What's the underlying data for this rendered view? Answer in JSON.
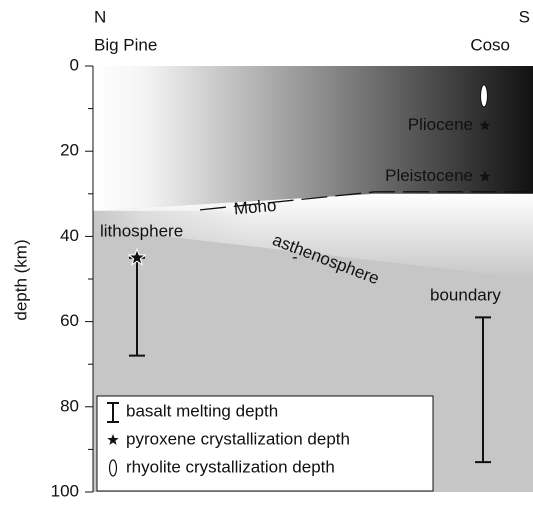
{
  "chart_data": {
    "type": "cross-section",
    "directions": [
      "N",
      "S"
    ],
    "locations": [
      "Big Pine",
      "Coso"
    ],
    "y_label": "depth (km)",
    "ylim": [
      0,
      100
    ],
    "yticks": [
      0,
      20,
      40,
      60,
      80,
      100
    ],
    "y_minor_ticks": [
      10,
      30,
      50,
      70,
      90
    ],
    "moho": {
      "label": "Moho",
      "depths": [
        34,
        30
      ]
    },
    "lab_label": [
      "lithosphere",
      "-",
      "asthenosphere",
      "boundary"
    ],
    "basalt_melting_depth": {
      "name": "basalt melting depth",
      "ranges": [
        [
          45,
          68
        ],
        [
          59,
          93
        ]
      ]
    },
    "pyroxene_crystallization_depth": {
      "name": "pyroxene crystallization depth",
      "points": [
        {
          "depth": 45
        },
        {
          "depth": 14,
          "label": "Pliocene"
        },
        {
          "depth": 26,
          "label": "Pleistocene"
        }
      ]
    },
    "rhyolite_crystallization_depth": {
      "name": "rhyolite crystallization depth",
      "depth": 7
    }
  }
}
